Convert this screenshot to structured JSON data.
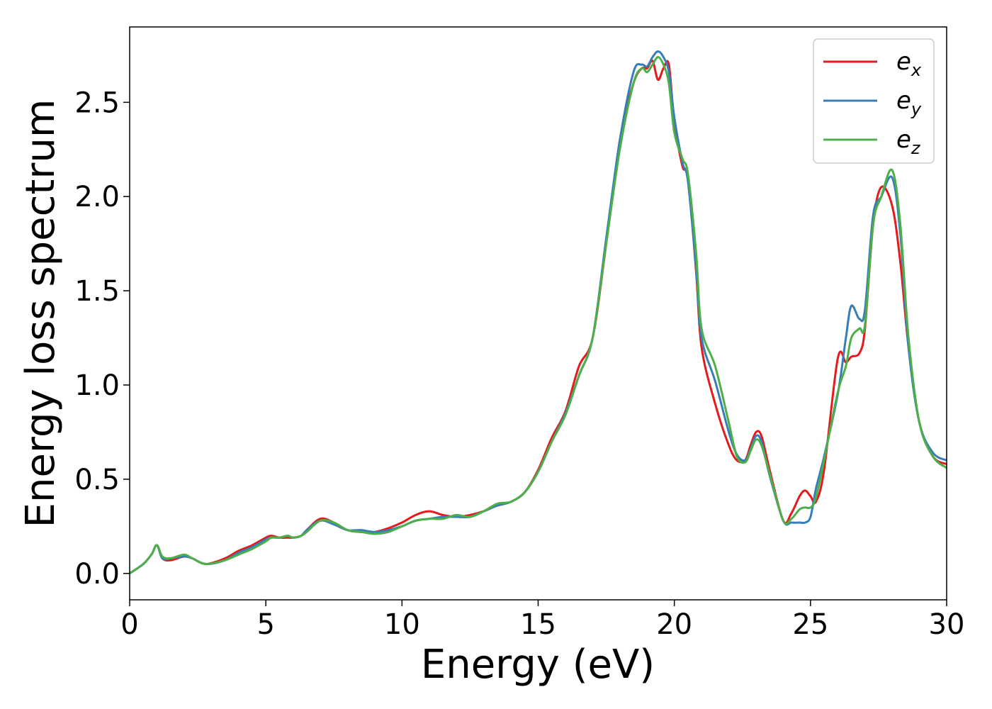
{
  "chart_data": {
    "type": "line",
    "xlabel": "Energy (eV)",
    "ylabel": "Energy loss spectrum",
    "xlim": [
      0,
      30
    ],
    "ylim": [
      -0.14,
      2.9
    ],
    "xticks": [
      "0",
      "5",
      "10",
      "15",
      "20",
      "25",
      "30"
    ],
    "yticks": [
      "0.0",
      "0.5",
      "1.0",
      "1.5",
      "2.0",
      "2.5"
    ],
    "grid": false,
    "legend_position": "top-right",
    "series": [
      {
        "name": "e",
        "subscript": "x",
        "color": "#e41a1c",
        "x": [
          0,
          0.5,
          0.8,
          1.0,
          1.2,
          1.5,
          2.0,
          2.3,
          2.8,
          3.5,
          4.0,
          4.5,
          5.0,
          5.2,
          5.5,
          5.8,
          6.0,
          6.3,
          6.5,
          7.0,
          7.5,
          8.0,
          8.5,
          9.0,
          9.5,
          10.0,
          10.5,
          11.0,
          11.5,
          12.0,
          12.5,
          13.0,
          13.5,
          14.0,
          14.5,
          15.0,
          15.5,
          16.0,
          16.5,
          17.0,
          17.5,
          18.0,
          18.5,
          18.8,
          19.0,
          19.2,
          19.4,
          19.6,
          19.8,
          20.0,
          20.3,
          20.5,
          20.8,
          21.0,
          21.5,
          22.0,
          22.3,
          22.6,
          22.8,
          23.0,
          23.2,
          23.5,
          24.0,
          24.3,
          24.6,
          24.8,
          25.0,
          25.2,
          25.5,
          26.0,
          26.3,
          26.5,
          26.8,
          27.0,
          27.3,
          27.6,
          28.0,
          28.3,
          28.6,
          29.0,
          29.5,
          30.0
        ],
        "y": [
          0.0,
          0.05,
          0.1,
          0.15,
          0.08,
          0.07,
          0.09,
          0.08,
          0.05,
          0.08,
          0.12,
          0.15,
          0.19,
          0.2,
          0.19,
          0.19,
          0.19,
          0.2,
          0.23,
          0.29,
          0.27,
          0.23,
          0.22,
          0.22,
          0.24,
          0.27,
          0.31,
          0.33,
          0.31,
          0.3,
          0.31,
          0.33,
          0.36,
          0.38,
          0.43,
          0.55,
          0.72,
          0.86,
          1.1,
          1.25,
          1.75,
          2.3,
          2.6,
          2.68,
          2.68,
          2.72,
          2.62,
          2.68,
          2.7,
          2.4,
          2.16,
          2.1,
          1.6,
          1.2,
          0.9,
          0.68,
          0.6,
          0.6,
          0.68,
          0.75,
          0.73,
          0.55,
          0.28,
          0.32,
          0.41,
          0.44,
          0.41,
          0.38,
          0.55,
          1.14,
          1.12,
          1.15,
          1.17,
          1.3,
          1.85,
          2.05,
          1.95,
          1.65,
          1.2,
          0.8,
          0.62,
          0.58
        ]
      },
      {
        "name": "e",
        "subscript": "y",
        "color": "#377eb8",
        "x": [
          0,
          0.5,
          0.8,
          1.0,
          1.2,
          1.5,
          2.0,
          2.3,
          2.8,
          3.5,
          4.0,
          4.5,
          5.0,
          5.2,
          5.5,
          5.8,
          6.0,
          6.3,
          6.5,
          7.0,
          7.5,
          8.0,
          8.5,
          9.0,
          9.5,
          10.0,
          10.5,
          11.0,
          11.5,
          12.0,
          12.5,
          13.0,
          13.5,
          14.0,
          14.5,
          15.0,
          15.5,
          16.0,
          16.5,
          17.0,
          17.5,
          18.0,
          18.5,
          18.8,
          19.0,
          19.2,
          19.4,
          19.6,
          19.8,
          20.0,
          20.3,
          20.5,
          20.8,
          21.0,
          21.5,
          22.0,
          22.3,
          22.6,
          22.8,
          23.0,
          23.2,
          23.5,
          24.0,
          24.3,
          24.6,
          24.8,
          25.0,
          25.2,
          25.5,
          26.0,
          26.3,
          26.5,
          26.8,
          27.0,
          27.3,
          27.6,
          28.0,
          28.3,
          28.6,
          29.0,
          29.5,
          30.0
        ],
        "y": [
          0.0,
          0.05,
          0.1,
          0.15,
          0.08,
          0.08,
          0.09,
          0.08,
          0.05,
          0.07,
          0.11,
          0.14,
          0.18,
          0.19,
          0.19,
          0.2,
          0.19,
          0.2,
          0.23,
          0.28,
          0.26,
          0.23,
          0.23,
          0.22,
          0.23,
          0.25,
          0.28,
          0.29,
          0.3,
          0.3,
          0.3,
          0.33,
          0.36,
          0.38,
          0.43,
          0.54,
          0.7,
          0.85,
          1.05,
          1.25,
          1.78,
          2.3,
          2.66,
          2.7,
          2.69,
          2.74,
          2.77,
          2.74,
          2.66,
          2.42,
          2.18,
          2.08,
          1.62,
          1.25,
          1.02,
          0.75,
          0.63,
          0.6,
          0.66,
          0.73,
          0.7,
          0.52,
          0.28,
          0.27,
          0.27,
          0.27,
          0.3,
          0.45,
          0.62,
          0.95,
          1.25,
          1.42,
          1.35,
          1.4,
          1.9,
          2.0,
          2.1,
          1.8,
          1.2,
          0.8,
          0.64,
          0.6
        ]
      },
      {
        "name": "e",
        "subscript": "z",
        "color": "#4daf4a",
        "x": [
          0,
          0.5,
          0.8,
          1.0,
          1.2,
          1.5,
          2.0,
          2.3,
          2.8,
          3.5,
          4.0,
          4.5,
          5.0,
          5.2,
          5.5,
          5.8,
          6.0,
          6.3,
          6.5,
          7.0,
          7.5,
          8.0,
          8.5,
          9.0,
          9.5,
          10.0,
          10.5,
          11.0,
          11.5,
          12.0,
          12.5,
          13.0,
          13.5,
          14.0,
          14.5,
          15.0,
          15.5,
          16.0,
          16.5,
          17.0,
          17.5,
          18.0,
          18.5,
          18.8,
          19.0,
          19.2,
          19.4,
          19.6,
          19.8,
          20.0,
          20.3,
          20.5,
          20.8,
          21.0,
          21.5,
          22.0,
          22.3,
          22.6,
          22.8,
          23.0,
          23.2,
          23.5,
          24.0,
          24.3,
          24.6,
          24.8,
          25.0,
          25.2,
          25.5,
          26.0,
          26.3,
          26.5,
          26.8,
          27.0,
          27.3,
          27.6,
          28.0,
          28.3,
          28.6,
          29.0,
          29.5,
          30.0
        ],
        "y": [
          0.0,
          0.05,
          0.1,
          0.15,
          0.09,
          0.08,
          0.1,
          0.08,
          0.05,
          0.07,
          0.1,
          0.13,
          0.17,
          0.19,
          0.19,
          0.2,
          0.19,
          0.2,
          0.22,
          0.28,
          0.27,
          0.23,
          0.22,
          0.21,
          0.22,
          0.25,
          0.28,
          0.29,
          0.29,
          0.31,
          0.3,
          0.33,
          0.37,
          0.38,
          0.43,
          0.54,
          0.7,
          0.84,
          1.05,
          1.25,
          1.75,
          2.25,
          2.6,
          2.68,
          2.66,
          2.7,
          2.74,
          2.7,
          2.6,
          2.34,
          2.2,
          2.12,
          1.7,
          1.3,
          1.1,
          0.8,
          0.62,
          0.59,
          0.65,
          0.71,
          0.68,
          0.53,
          0.28,
          0.29,
          0.34,
          0.35,
          0.35,
          0.4,
          0.6,
          0.96,
          1.1,
          1.25,
          1.3,
          1.32,
          1.85,
          2.0,
          2.14,
          1.85,
          1.25,
          0.8,
          0.62,
          0.56
        ]
      }
    ]
  }
}
